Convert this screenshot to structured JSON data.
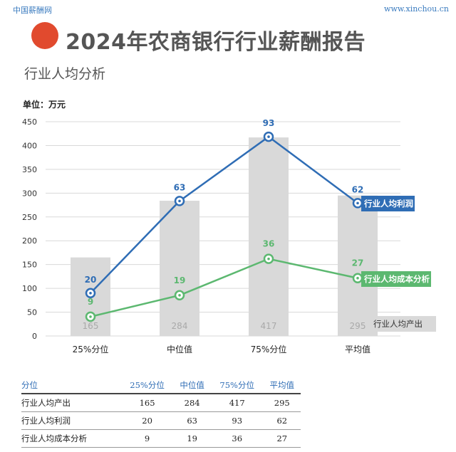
{
  "header": {
    "site_name": "中国薪酬网",
    "site_url": "www.xinchou.cn",
    "report_title": "2024年农商银行行业薪酬报告",
    "section_title": "行业人均分析"
  },
  "colors": {
    "accent_dot": "#e14a2e",
    "profit_line": "#2f6db5",
    "cost_line": "#5cb870",
    "output_bar": "#d9d9d9",
    "table_header_text": "#2f6db5"
  },
  "chart_data": {
    "type": "bar+line",
    "unit_label": "单位：万元",
    "categories": [
      "25%分位",
      "中位值",
      "75%分位",
      "平均值"
    ],
    "ylim": [
      0,
      450
    ],
    "yticks": [
      0,
      50,
      100,
      150,
      200,
      250,
      300,
      350,
      400,
      450
    ],
    "grid": true,
    "series": [
      {
        "name": "行业人均产出",
        "type": "bar",
        "values": [
          165,
          284,
          417,
          295
        ]
      },
      {
        "name": "行业人均利润",
        "type": "line",
        "values": [
          20,
          63,
          93,
          62
        ],
        "display_scale": 4.5
      },
      {
        "name": "行业人均成本分析",
        "type": "line",
        "values": [
          9,
          19,
          36,
          27
        ],
        "display_scale": 4.5
      }
    ],
    "legend_placement": "right, inline labels at series end"
  },
  "table": {
    "headers": [
      "分位",
      "25%分位",
      "中位值",
      "75%分位",
      "平均值"
    ],
    "rows": [
      [
        "行业人均产出",
        "165",
        "284",
        "417",
        "295"
      ],
      [
        "行业人均利润",
        "20",
        "63",
        "93",
        "62"
      ],
      [
        "行业人均成本分析",
        "9",
        "19",
        "36",
        "27"
      ]
    ]
  }
}
